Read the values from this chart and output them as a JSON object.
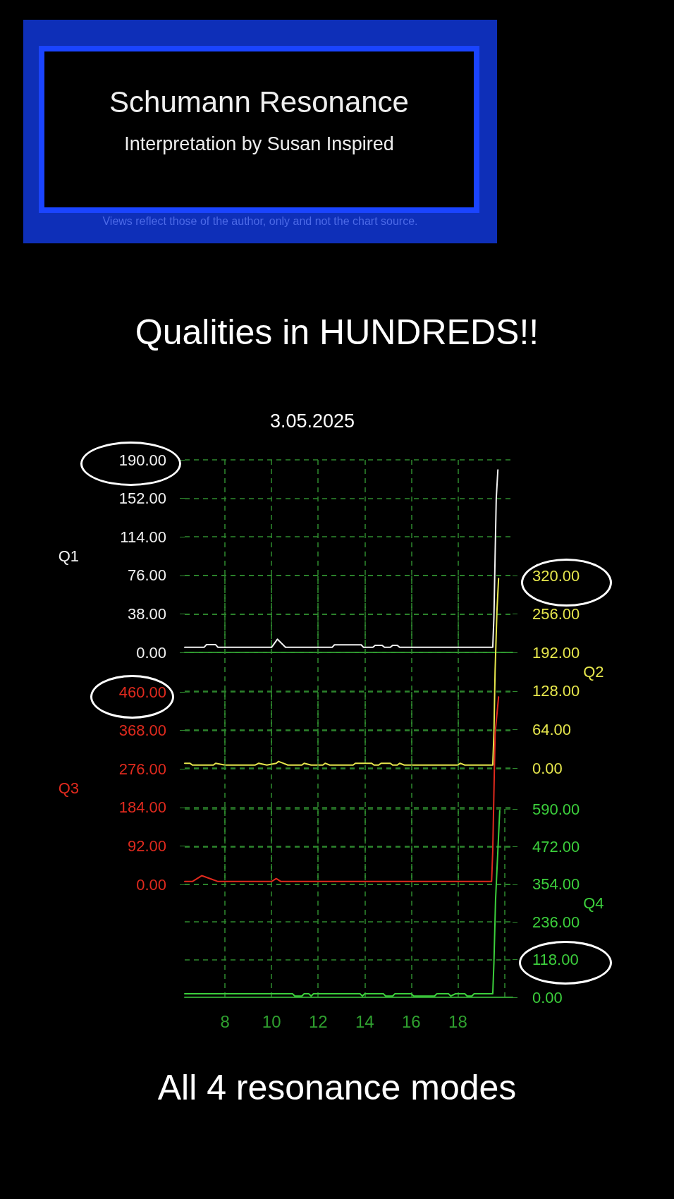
{
  "chart_data": [
    {
      "type": "line",
      "title": "Schumann Resonance",
      "subtitle": "Interpretation by Susan Inspired",
      "annotations": [
        "Views reflect those of the author, only and not the chart source.",
        "Qualities in HUNDREDS!!",
        "3.05.2025",
        "All 4 resonance modes"
      ],
      "ylabel": "Q1",
      "xlim": [
        6.27,
        20.35
      ],
      "xticks": [
        8,
        10,
        12,
        14,
        16,
        18
      ],
      "ylim": [
        0,
        190
      ],
      "yticks": [
        {
          "value": 0,
          "label": "0.00"
        },
        {
          "value": 38,
          "label": "38.00"
        },
        {
          "value": 76,
          "label": "76.00"
        },
        {
          "value": 114,
          "label": "114.00"
        },
        {
          "value": 152,
          "label": "152.00"
        },
        {
          "value": 190,
          "label": "190.00"
        }
      ],
      "grid": true,
      "marker": "none",
      "tick_labels": "y",
      "series": [
        {
          "color": "#f2f2f2",
          "x": [
            6.27,
            7.1,
            7.2,
            7.6,
            7.7,
            10.0,
            10.25,
            10.6,
            12.6,
            12.7,
            13.85,
            13.95,
            14.35,
            14.45,
            14.75,
            14.85,
            15.1,
            15.2,
            15.4,
            15.5,
            19.5,
            19.55,
            19.6,
            19.65,
            19.72
          ],
          "values": [
            5,
            5,
            7.6,
            7.6,
            5,
            5,
            13,
            5,
            5,
            7.5,
            7.5,
            5,
            5,
            7,
            7,
            5,
            5,
            7,
            7,
            5,
            5,
            35,
            94,
            152,
            180
          ]
        }
      ]
    },
    {
      "type": "line",
      "y2label": "Q2",
      "xlim": [
        6.27,
        20.35
      ],
      "xticks": [
        8,
        10,
        12,
        14,
        16,
        18
      ],
      "y2lim": [
        0,
        320
      ],
      "y2ticks": [
        {
          "value": 0,
          "label": "0.00"
        },
        {
          "value": 64,
          "label": "64.00"
        },
        {
          "value": 128,
          "label": "128.00"
        },
        {
          "value": 192,
          "label": "192.00"
        },
        {
          "value": 256,
          "label": "256.00"
        },
        {
          "value": 320,
          "label": "320.00"
        }
      ],
      "grid": true,
      "marker": "none",
      "tick_labels": "y",
      "series": [
        {
          "color": "#e6e64c",
          "axis": "y2",
          "x": [
            6.27,
            6.5,
            6.6,
            7.5,
            7.6,
            8.0,
            9.3,
            9.45,
            9.8,
            10.2,
            10.3,
            10.5,
            10.7,
            11.3,
            11.4,
            11.7,
            12.2,
            12.3,
            12.5,
            13.5,
            13.6,
            14.3,
            14.4,
            14.6,
            14.7,
            15.1,
            15.2,
            15.4,
            15.5,
            15.7,
            18.0,
            18.1,
            18.3,
            19.5,
            19.55,
            19.6,
            19.68,
            19.75
          ],
          "values": [
            8,
            8,
            5,
            5,
            8,
            5,
            5,
            8,
            5,
            8,
            11,
            8,
            5,
            5,
            8,
            5,
            5,
            8,
            5,
            5,
            8,
            8,
            5,
            5,
            8,
            8,
            5,
            5,
            8,
            5,
            5,
            8,
            5,
            5,
            57,
            161,
            261,
            315
          ]
        }
      ]
    },
    {
      "type": "line",
      "ylabel": "Q3",
      "xlim": [
        6.27,
        20.35
      ],
      "xticks": [
        8,
        10,
        12,
        14,
        16,
        18
      ],
      "ylim": [
        0,
        460
      ],
      "yticks": [
        {
          "value": 0,
          "label": "0.00"
        },
        {
          "value": 92,
          "label": "92.00"
        },
        {
          "value": 184,
          "label": "184.00"
        },
        {
          "value": 276,
          "label": "276.00"
        },
        {
          "value": 368,
          "label": "368.00"
        },
        {
          "value": 460,
          "label": "460.00"
        }
      ],
      "grid": true,
      "marker": "none",
      "tick_labels": "y",
      "series": [
        {
          "color": "#e02a1e",
          "x": [
            6.27,
            6.6,
            7.0,
            7.4,
            7.7,
            10.0,
            10.2,
            10.4,
            19.45,
            19.5,
            19.6,
            19.75
          ],
          "values": [
            7,
            7,
            21,
            13,
            7,
            7,
            14,
            7,
            7,
            80,
            360,
            448
          ]
        }
      ]
    },
    {
      "type": "line",
      "y2label": "Q4",
      "xlim": [
        6.27,
        20.35
      ],
      "xticks": [
        8,
        10,
        12,
        14,
        16,
        18,
        {
          "value": 20,
          "label": null
        }
      ],
      "y2lim": [
        0,
        590
      ],
      "y2ticks": [
        {
          "value": 0,
          "label": "0.00"
        },
        {
          "value": 118,
          "label": "118.00"
        },
        {
          "value": 236,
          "label": "236.00"
        },
        {
          "value": 354,
          "label": "354.00"
        },
        {
          "value": 472,
          "label": "472.00"
        },
        {
          "value": 590,
          "label": "590.00"
        }
      ],
      "grid": true,
      "marker": "none",
      "series": [
        {
          "color": "#3ccf3c",
          "axis": "y2",
          "x": [
            6.27,
            10.9,
            11.0,
            11.3,
            11.4,
            11.6,
            11.7,
            11.8,
            13.8,
            13.9,
            14.0,
            14.8,
            14.9,
            15.2,
            15.3,
            16.0,
            16.1,
            17.0,
            17.1,
            17.6,
            17.7,
            17.9,
            18.3,
            18.4,
            18.6,
            18.7,
            19.5,
            19.55,
            19.62,
            19.8
          ],
          "values": [
            11,
            11,
            4,
            4,
            11,
            11,
            4,
            11,
            11,
            4,
            11,
            11,
            4,
            4,
            11,
            11,
            4,
            4,
            11,
            11,
            4,
            11,
            11,
            4,
            4,
            11,
            11,
            108,
            305,
            585
          ]
        }
      ]
    }
  ]
}
